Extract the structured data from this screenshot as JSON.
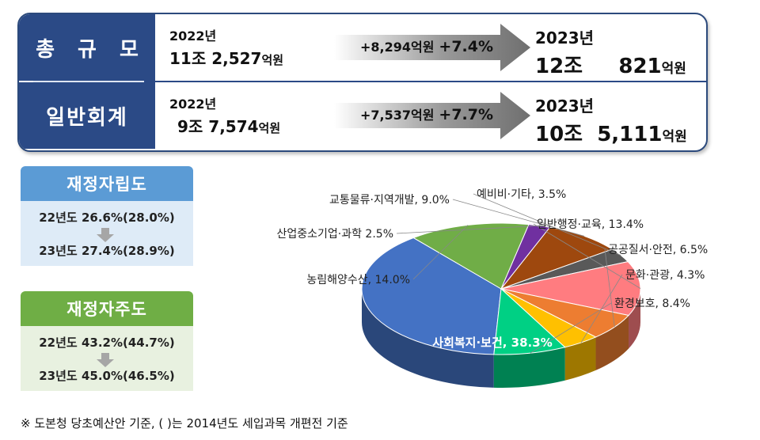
{
  "budget": {
    "total": {
      "label": "총 규 모",
      "from_year": "2022년",
      "from_amount_num": "11조 2,527",
      "from_unit": "억원",
      "change_amount": "+8,294억원",
      "change_pct": "+7.4%",
      "to_year": "2023년",
      "to_amount_num": "12조     821",
      "to_unit": "억원"
    },
    "general": {
      "label": "일반회계",
      "from_year": "2022년",
      "from_amount_num": "9조 7,574",
      "from_unit": "억원",
      "change_amount": "+7,537억원",
      "change_pct": "+7.7%",
      "to_year": "2023년",
      "to_amount_num": "10조  5,111",
      "to_unit": "억원"
    }
  },
  "fiscal_self_reliance": {
    "title": "재정자립도",
    "line1": "22년도 26.6%(28.0%)",
    "line2": "23년도 27.4%(28.9%)"
  },
  "fiscal_autonomy": {
    "title": "재정자주도",
    "line1": "22년도 43.2%(44.7%)",
    "line2": "23년도 45.0%(46.5%)"
  },
  "chart_data": {
    "type": "pie",
    "title": "",
    "series": [
      {
        "categories": [
          "사회복지·보건",
          "농림해양수산",
          "산업중소기업·과학",
          "교통물류·지역개발",
          "예비비·기타",
          "일반행정·교육",
          "공공질서·안전",
          "문화·관광",
          "환경보호"
        ],
        "values": [
          38.3,
          14.0,
          2.5,
          9.0,
          3.5,
          13.4,
          6.5,
          4.3,
          8.4
        ],
        "labels": [
          "사회복지·보건, 38.3%",
          "농림해양수산, 14.0%",
          "산업중소기업·과학 2.5%",
          "교통물류·지역개발, 9.0%",
          "예비비·기타, 3.5%",
          "일반행정·교육, 13.4%",
          "공공질서·안전, 6.5%",
          "문화·관광, 4.3%",
          "환경보호, 8.4%"
        ],
        "colors": [
          "#4472c4",
          "#70ad47",
          "#7030a0",
          "#9e480e",
          "#595959",
          "#ff7c80",
          "#ed7d31",
          "#ffc000",
          "#00d084"
        ]
      }
    ],
    "legend": "none"
  },
  "footnote": "※ 도본청 당초예산안 기준, ( )는 2014년도 세입과목 개편전 기준"
}
